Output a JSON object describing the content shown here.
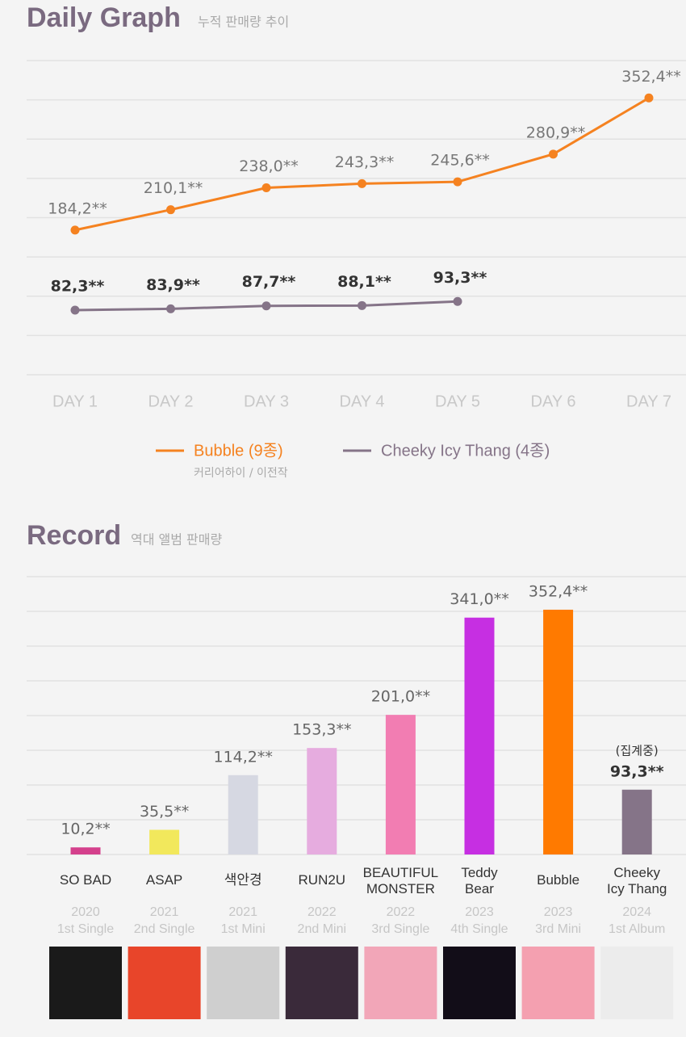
{
  "chart_data": [
    {
      "type": "line",
      "title": "Daily Graph",
      "subtitle": "누적 판매량 추이",
      "categories": [
        "DAY 1",
        "DAY 2",
        "DAY 3",
        "DAY 4",
        "DAY 5",
        "DAY 6",
        "DAY 7"
      ],
      "series": [
        {
          "name": "Bubble (9종)",
          "color": "#f58220",
          "bold": false,
          "values": [
            184.2,
            210.1,
            238.0,
            243.3,
            245.6,
            280.9,
            352.4
          ],
          "value_labels": [
            "184,2**",
            "210,1**",
            "238,0**",
            "243,3**",
            "245,6**",
            "280,9**",
            "352,4**"
          ]
        },
        {
          "name": "Cheeky Icy Thang (4종)",
          "color": "#857488",
          "bold": true,
          "values": [
            82.3,
            83.9,
            87.7,
            88.1,
            93.3,
            null,
            null
          ],
          "value_labels": [
            "82,3**",
            "83,9**",
            "87,7**",
            "88,1**",
            "93,3**",
            null,
            null
          ]
        }
      ],
      "legend_note": "커리어하이 / 이전작",
      "ylim": [
        0,
        400
      ],
      "yticks": [
        0,
        50,
        100,
        150,
        200,
        250,
        300,
        350,
        400
      ],
      "grid": true
    },
    {
      "type": "bar",
      "title": "Record",
      "subtitle": "역대 앨범 판매량",
      "categories": [
        "SO BAD",
        "ASAP",
        "색안경",
        "RUN2U",
        "BEAUTIFUL\nMONSTER",
        "Teddy\nBear",
        "Bubble",
        "Cheeky\nIcy Thang"
      ],
      "years": [
        "2020",
        "2021",
        "2021",
        "2022",
        "2022",
        "2023",
        "2023",
        "2024"
      ],
      "kinds": [
        "1st Single",
        "2nd Single",
        "1st Mini",
        "2nd Mini",
        "3rd Single",
        "4th Single",
        "3rd Mini",
        "1st Album"
      ],
      "values": [
        10.2,
        35.5,
        114.2,
        153.3,
        201.0,
        341.0,
        352.4,
        93.3
      ],
      "value_labels": [
        "10,2**",
        "35,5**",
        "114,2**",
        "153,3**",
        "201,0**",
        "341,0**",
        "352,4**",
        "93,3**"
      ],
      "colors": [
        "#d4408c",
        "#f2e85c",
        "#d6d8e2",
        "#e6acdf",
        "#f27db2",
        "#c62fe2",
        "#ff7a00",
        "#857488"
      ],
      "annotation": "(집계중)",
      "ylim": [
        0,
        400
      ],
      "yticks": [
        0,
        50,
        100,
        150,
        200,
        250,
        300,
        350,
        400
      ],
      "grid": true
    }
  ]
}
